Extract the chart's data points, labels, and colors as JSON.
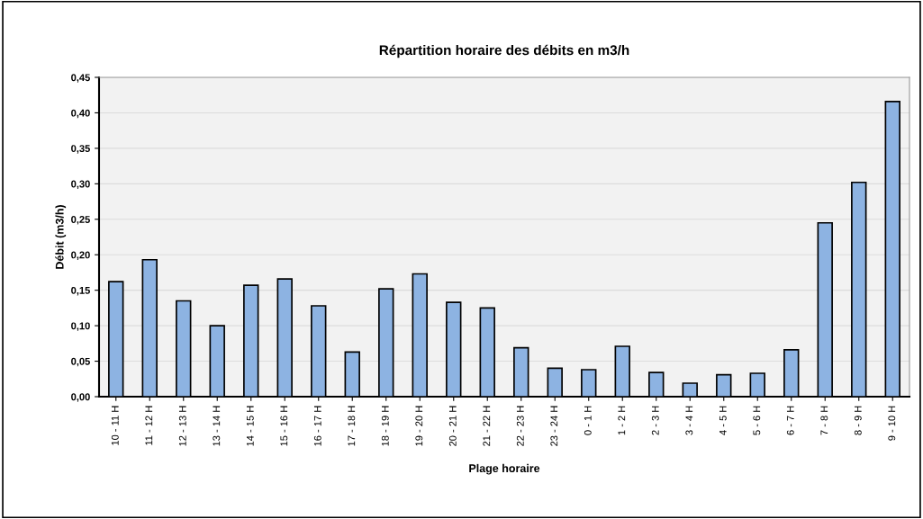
{
  "chart_data": {
    "type": "bar",
    "title": "Répartition horaire des débits en m3/h",
    "xlabel": "Plage horaire",
    "ylabel": "Débit (m3/h)",
    "categories": [
      "10 - 11 H",
      "11 - 12 H",
      "12 - 13 H",
      "13 - 14 H",
      "14 - 15 H",
      "15 - 16 H",
      "16 - 17 H",
      "17 - 18 H",
      "18 - 19 H",
      "19 - 20 H",
      "20 - 21 H",
      "21 - 22 H",
      "22 - 23 H",
      "23 - 24 H",
      "0 - 1 H",
      "1 - 2 H",
      "2 - 3 H",
      "3 - 4 H",
      "4 - 5 H",
      "5 - 6 H",
      "6 - 7 H",
      "7 - 8 H",
      "8 - 9 H",
      "9 - 10 H"
    ],
    "values": [
      0.162,
      0.193,
      0.135,
      0.1,
      0.157,
      0.166,
      0.128,
      0.063,
      0.152,
      0.173,
      0.133,
      0.125,
      0.069,
      0.04,
      0.038,
      0.071,
      0.034,
      0.019,
      0.031,
      0.033,
      0.066,
      0.245,
      0.302,
      0.416
    ],
    "color": "#8db3e2",
    "ylim": [
      0,
      0.45
    ],
    "yticks": [
      {
        "value": 0,
        "label": "0,00"
      },
      {
        "value": 0.05,
        "label": "0,05"
      },
      {
        "value": 0.1,
        "label": "0,10"
      },
      {
        "value": 0.15,
        "label": "0,15"
      },
      {
        "value": 0.2,
        "label": "0,20"
      },
      {
        "value": 0.25,
        "label": "0,25"
      },
      {
        "value": 0.3,
        "label": "0,30"
      },
      {
        "value": 0.35,
        "label": "0,35"
      },
      {
        "value": 0.4,
        "label": "0,40"
      },
      {
        "value": 0.45,
        "label": "0,45"
      }
    ],
    "grid": "y",
    "legend": false
  }
}
